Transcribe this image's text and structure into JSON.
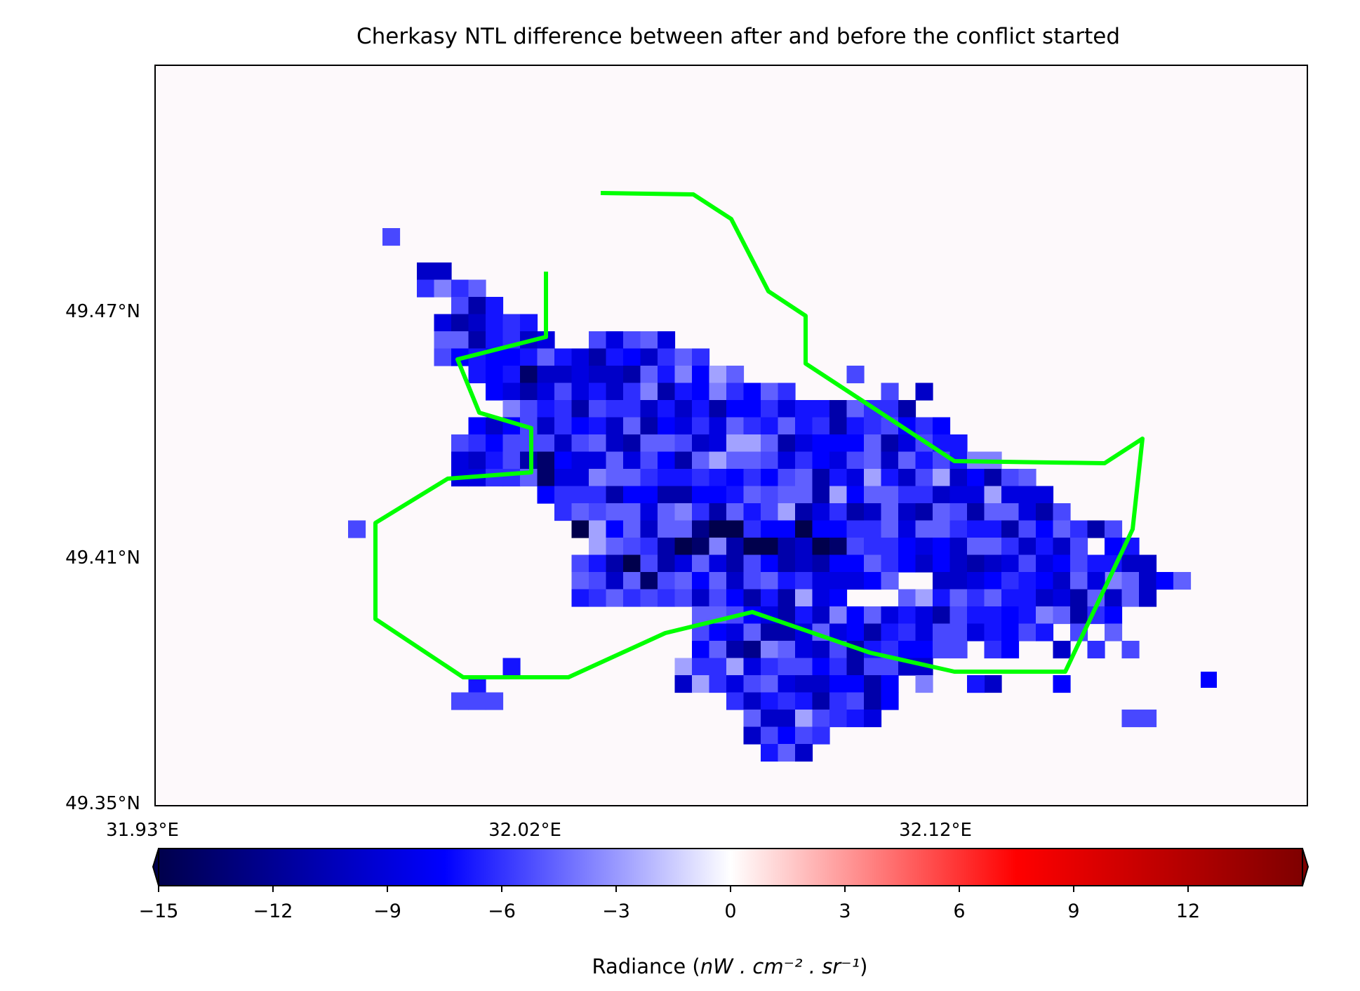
{
  "title": "Cherkasy NTL difference between after and before the conflict started",
  "map": {
    "background_color": "#fdf9fb",
    "boundary_color": "#00ff00",
    "lat_ticks": [
      "49.47°N",
      "49.41°N",
      "49.35°N"
    ],
    "lon_ticks": [
      "31.93°E",
      "32.02°E",
      "32.12°E"
    ]
  },
  "colorbar": {
    "label_prefix": "Radiance (",
    "label_unit": "nW . cm⁻² . sr⁻¹",
    "label_suffix": ")",
    "ticks": [
      "−15",
      "−12",
      "−9",
      "−6",
      "−3",
      "0",
      "3",
      "6",
      "9",
      "12"
    ],
    "range": [
      -15,
      15
    ],
    "colormap": "seismic",
    "extend": "both"
  }
}
